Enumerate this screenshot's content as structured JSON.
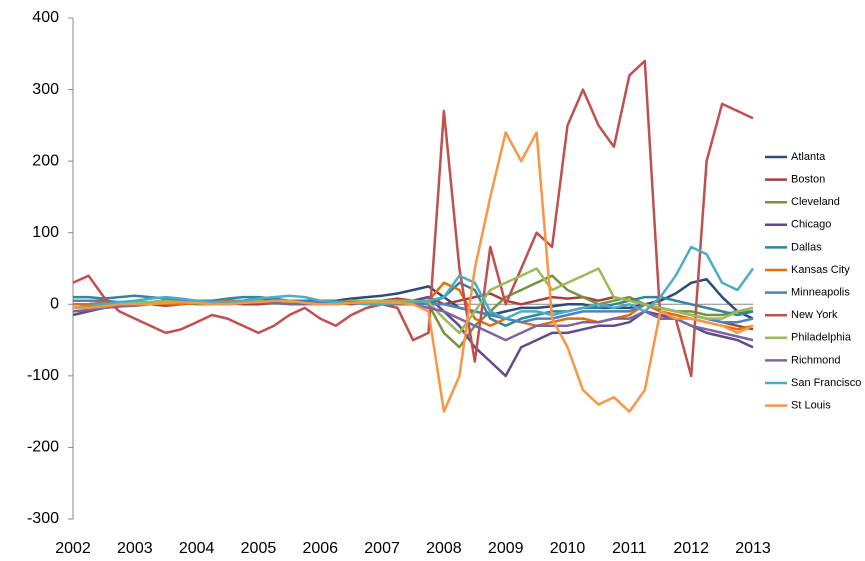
{
  "chart_data": {
    "type": "line",
    "x": [
      2002,
      2002.25,
      2002.5,
      2002.75,
      2003,
      2003.25,
      2003.5,
      2003.75,
      2004,
      2004.25,
      2004.5,
      2004.75,
      2005,
      2005.25,
      2005.5,
      2005.75,
      2006,
      2006.25,
      2006.5,
      2006.75,
      2007,
      2007.25,
      2007.5,
      2007.75,
      2008,
      2008.25,
      2008.5,
      2008.75,
      2009,
      2009.25,
      2009.5,
      2009.75,
      2010,
      2010.25,
      2010.5,
      2010.75,
      2011,
      2011.25,
      2011.5,
      2011.75,
      2012,
      2012.25,
      2012.5,
      2012.75,
      2013
    ],
    "xlim": [
      2002,
      2013
    ],
    "xticks": [
      2002,
      2003,
      2004,
      2005,
      2006,
      2007,
      2008,
      2009,
      2010,
      2011,
      2012,
      2013
    ],
    "ylim": [
      -300,
      400
    ],
    "yticks": [
      -300,
      -200,
      -100,
      0,
      100,
      200,
      300,
      400
    ],
    "grid": false,
    "legend": "right",
    "series": [
      {
        "name": "Atlanta",
        "color": "#2c4d75",
        "values": [
          -5,
          -3,
          -2,
          0,
          2,
          3,
          5,
          5,
          3,
          2,
          0,
          2,
          5,
          3,
          2,
          0,
          3,
          5,
          8,
          10,
          12,
          15,
          20,
          25,
          10,
          -5,
          -10,
          -15,
          -10,
          -5,
          -5,
          -3,
          0,
          0,
          -5,
          -5,
          -5,
          0,
          5,
          15,
          30,
          35,
          10,
          -10,
          -20
        ]
      },
      {
        "name": "Boston",
        "color": "#a5403d",
        "values": [
          0,
          0,
          2,
          3,
          2,
          0,
          -2,
          0,
          2,
          3,
          2,
          0,
          0,
          2,
          3,
          5,
          3,
          2,
          0,
          2,
          5,
          8,
          5,
          10,
          0,
          5,
          10,
          15,
          5,
          0,
          5,
          10,
          8,
          10,
          5,
          10,
          5,
          0,
          -5,
          -10,
          -15,
          -20,
          -25,
          -30,
          -35
        ]
      },
      {
        "name": "Cleveland",
        "color": "#77933c",
        "values": [
          -5,
          -3,
          -2,
          0,
          0,
          2,
          3,
          2,
          0,
          0,
          2,
          3,
          5,
          5,
          3,
          2,
          0,
          0,
          2,
          3,
          5,
          5,
          3,
          0,
          -40,
          -60,
          -30,
          -10,
          10,
          20,
          30,
          40,
          20,
          10,
          0,
          5,
          10,
          0,
          -5,
          -10,
          -10,
          -15,
          -15,
          -10,
          -10
        ]
      },
      {
        "name": "Chicago",
        "color": "#5f4b8b",
        "values": [
          -15,
          -10,
          -5,
          -3,
          0,
          2,
          3,
          3,
          2,
          0,
          2,
          5,
          8,
          5,
          2,
          0,
          0,
          2,
          3,
          5,
          5,
          5,
          5,
          10,
          -10,
          -30,
          -60,
          -80,
          -100,
          -60,
          -50,
          -40,
          -40,
          -35,
          -30,
          -30,
          -25,
          -10,
          -15,
          -20,
          -30,
          -40,
          -45,
          -50,
          -60
        ]
      },
      {
        "name": "Dallas",
        "color": "#31859c",
        "values": [
          10,
          10,
          8,
          10,
          12,
          10,
          8,
          5,
          5,
          5,
          8,
          10,
          10,
          8,
          5,
          5,
          5,
          5,
          3,
          3,
          5,
          5,
          3,
          0,
          10,
          30,
          20,
          -20,
          -30,
          -20,
          -15,
          -10,
          -10,
          -5,
          -5,
          0,
          5,
          10,
          10,
          5,
          0,
          -5,
          -10,
          -15,
          -10
        ]
      },
      {
        "name": "Kansas City",
        "color": "#e46c0a",
        "values": [
          0,
          0,
          2,
          3,
          3,
          2,
          0,
          0,
          2,
          3,
          5,
          5,
          3,
          2,
          2,
          2,
          3,
          2,
          2,
          0,
          0,
          0,
          2,
          5,
          30,
          20,
          -20,
          -30,
          -20,
          -25,
          -30,
          -25,
          -20,
          -20,
          -25,
          -20,
          -15,
          0,
          -10,
          -15,
          -20,
          -25,
          -30,
          -35,
          -30
        ]
      },
      {
        "name": "Minneapolis",
        "color": "#4f81bd",
        "values": [
          5,
          5,
          5,
          3,
          3,
          3,
          5,
          5,
          3,
          2,
          2,
          3,
          3,
          3,
          3,
          3,
          3,
          2,
          2,
          2,
          2,
          2,
          2,
          0,
          0,
          -5,
          -10,
          -15,
          -20,
          -25,
          -20,
          -20,
          -15,
          -10,
          -10,
          -10,
          -10,
          0,
          -5,
          -10,
          -15,
          -20,
          -25,
          -25,
          -20
        ]
      },
      {
        "name": "New York",
        "color": "#c0504d",
        "values": [
          30,
          40,
          10,
          -10,
          -20,
          -30,
          -40,
          -35,
          -25,
          -15,
          -20,
          -30,
          -40,
          -30,
          -15,
          -5,
          -20,
          -30,
          -15,
          -5,
          0,
          -5,
          -50,
          -40,
          270,
          50,
          -80,
          80,
          0,
          50,
          100,
          80,
          250,
          300,
          250,
          220,
          320,
          340,
          -20,
          -20,
          -100,
          200,
          280,
          270,
          260
        ]
      },
      {
        "name": "Philadelphia",
        "color": "#9bbb59",
        "values": [
          -5,
          -3,
          0,
          2,
          2,
          3,
          5,
          3,
          2,
          0,
          2,
          5,
          5,
          3,
          2,
          0,
          0,
          2,
          5,
          5,
          5,
          5,
          5,
          3,
          -20,
          -40,
          -10,
          20,
          30,
          40,
          50,
          20,
          30,
          40,
          50,
          10,
          5,
          0,
          -5,
          -10,
          -15,
          -20,
          -20,
          -10,
          -5
        ]
      },
      {
        "name": "Richmond",
        "color": "#8064a2",
        "values": [
          -10,
          -8,
          -5,
          -3,
          -2,
          0,
          2,
          3,
          3,
          2,
          0,
          2,
          3,
          2,
          0,
          0,
          2,
          3,
          3,
          2,
          0,
          0,
          0,
          -5,
          -10,
          -20,
          -30,
          -40,
          -50,
          -40,
          -30,
          -30,
          -30,
          -25,
          -25,
          -20,
          -20,
          -10,
          -20,
          -20,
          -30,
          -35,
          -40,
          -45,
          -50
        ]
      },
      {
        "name": "San Francisco",
        "color": "#4bacc6",
        "values": [
          -5,
          -3,
          0,
          3,
          5,
          8,
          10,
          8,
          5,
          3,
          3,
          5,
          8,
          10,
          12,
          10,
          5,
          3,
          2,
          0,
          0,
          2,
          3,
          5,
          10,
          40,
          30,
          -10,
          -20,
          -10,
          -10,
          -15,
          -10,
          -5,
          0,
          -5,
          0,
          -10,
          10,
          40,
          80,
          70,
          30,
          20,
          50
        ]
      },
      {
        "name": "St Louis",
        "color": "#f79646",
        "values": [
          -5,
          -5,
          -3,
          0,
          0,
          0,
          2,
          3,
          2,
          0,
          0,
          2,
          3,
          5,
          5,
          2,
          0,
          0,
          2,
          3,
          3,
          2,
          0,
          -10,
          -150,
          -100,
          50,
          150,
          240,
          200,
          240,
          -20,
          -60,
          -120,
          -140,
          -130,
          -150,
          -120,
          -10,
          -20,
          -20,
          -25,
          -30,
          -40,
          -30
        ]
      }
    ]
  }
}
